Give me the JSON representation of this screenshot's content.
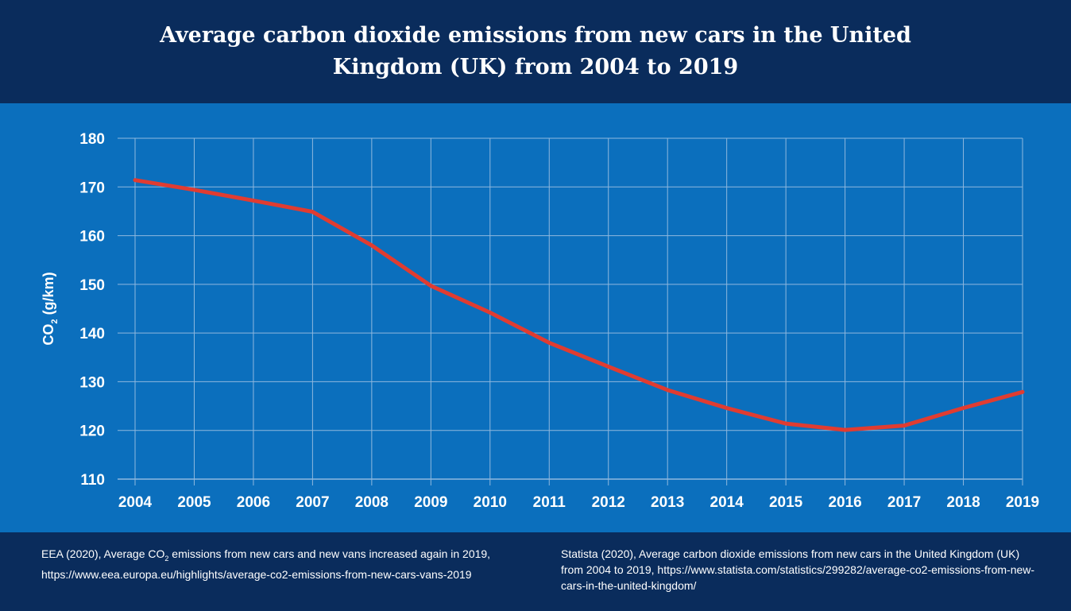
{
  "chart_data": {
    "type": "line",
    "title": "Average carbon dioxide emissions from new cars in the United Kingdom (UK) from 2004 to 2019",
    "xlabel": "",
    "ylabel_main": "CO",
    "ylabel_sub": "2",
    "ylabel_rest": " (g/km)",
    "ylim": [
      110,
      180
    ],
    "yticks": [
      110,
      120,
      130,
      140,
      150,
      160,
      170,
      180
    ],
    "grid": true,
    "legend": "none",
    "categories": [
      "2004",
      "2005",
      "2006",
      "2007",
      "2008",
      "2009",
      "2010",
      "2011",
      "2012",
      "2013",
      "2014",
      "2015",
      "2016",
      "2017",
      "2018",
      "2019"
    ],
    "series": [
      {
        "values": [
          171.4,
          169.4,
          167.2,
          164.9,
          158.0,
          149.7,
          144.2,
          138.0,
          133.1,
          128.3,
          124.6,
          121.4,
          120.1,
          121.0,
          124.6,
          127.9
        ],
        "color": "#e03c31"
      }
    ]
  },
  "colors": {
    "header_bg": "#0a2c5c",
    "panel_bg": "#0b6fbd",
    "grid": "#8fb8de",
    "line": "#e03c31",
    "text": "#ffffff"
  },
  "sources": {
    "left": {
      "pre": "EEA (2020), Average CO",
      "sub": "2",
      "post": " emissions from new cars and new vans increased again in 2019, https://www.eea.europa.eu/highlights/average-co2-emissions-from-new-cars-vans-2019"
    },
    "right": "Statista (2020), Average carbon dioxide emissions from new cars in the United Kingdom (UK) from 2004 to 2019, https://www.statista.com/statistics/299282/average-co2-emissions-from-new-cars-in-the-united-kingdom/"
  }
}
